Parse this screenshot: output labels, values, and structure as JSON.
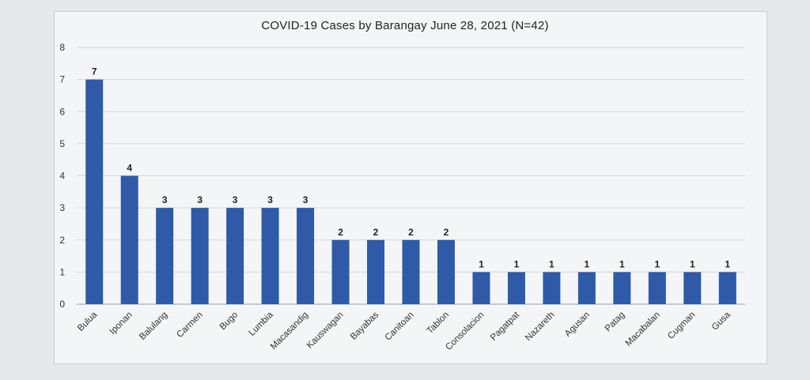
{
  "chart_data": {
    "type": "bar",
    "title": "COVID-19 Cases by Barangay June 28, 2021 (N=42)",
    "xlabel": "",
    "ylabel": "",
    "ylim": [
      0,
      8
    ],
    "yticks": [
      "0",
      "1",
      "2",
      "3",
      "4",
      "5",
      "6",
      "7",
      "8"
    ],
    "grid": true,
    "legend": "none",
    "bar_color": "#2e5aa8",
    "categories": [
      "Bulua",
      "Iponan",
      "Balulang",
      "Carmen",
      "Bugo",
      "Lumbia",
      "Macasandig",
      "Kauswagan",
      "Bayabas",
      "Canitoan",
      "Tablon",
      "Consolacion",
      "Pagatpat",
      "Nazareth",
      "Agusan",
      "Patag",
      "Macabalan",
      "Cugman",
      "Gusa"
    ],
    "values": [
      7,
      4,
      3,
      3,
      3,
      3,
      3,
      2,
      2,
      2,
      2,
      1,
      1,
      1,
      1,
      1,
      1,
      1,
      1
    ],
    "data_labels": [
      "7",
      "4",
      "3",
      "3",
      "3",
      "3",
      "3",
      "2",
      "2",
      "2",
      "2",
      "1",
      "1",
      "1",
      "1",
      "1",
      "1",
      "1",
      "1"
    ]
  }
}
